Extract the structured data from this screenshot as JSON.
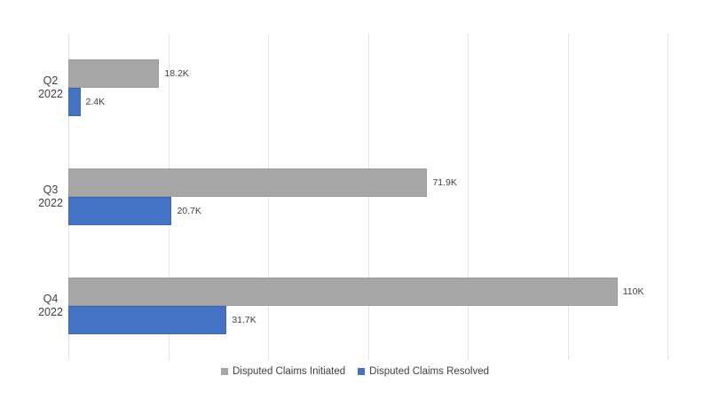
{
  "chart_data": {
    "type": "bar",
    "orientation": "horizontal",
    "title": "",
    "categories": [
      "Q2 2022",
      "Q3 2022",
      "Q4 2022"
    ],
    "category_lines": [
      [
        "Q2",
        "2022"
      ],
      [
        "Q3",
        "2022"
      ],
      [
        "Q4",
        "2022"
      ]
    ],
    "series": [
      {
        "name": "Disputed Claims Initiated",
        "color": "#a6a6a6",
        "border_color": "#9b9b9b",
        "values": [
          18200,
          71900,
          110000
        ],
        "labels": [
          "18.2K",
          "71.9K",
          "110K"
        ]
      },
      {
        "name": "Disputed Claims Resolved",
        "color": "#4472c4",
        "border_color": "#3d65b4",
        "values": [
          2400,
          20700,
          31700
        ],
        "labels": [
          "2.4K",
          "20.7K",
          "31.7K"
        ]
      }
    ],
    "x_axis": {
      "min": 0,
      "max": 120000,
      "gridline_step": 20000,
      "gridlines_visible": true,
      "tick_labels_visible": false
    },
    "y_axis": {
      "tick_labels_visible": true
    },
    "legend": {
      "position": "bottom",
      "entries": [
        "Disputed Claims Initiated",
        "Disputed Claims Resolved"
      ]
    },
    "colors": {
      "background": "#ffffff",
      "gridline": "#e2e2e2",
      "label_text": "#404040"
    }
  }
}
